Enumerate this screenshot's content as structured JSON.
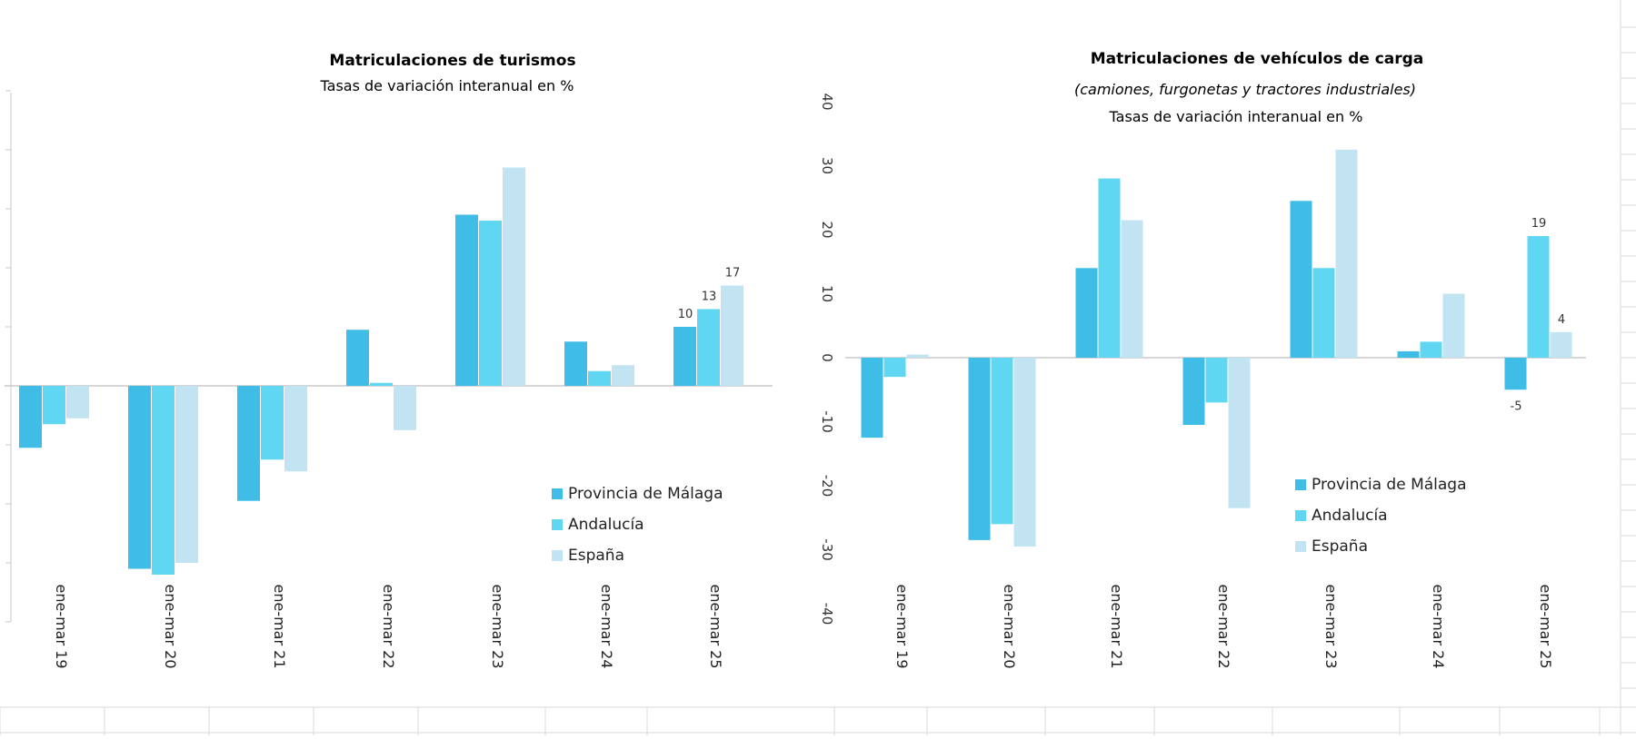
{
  "chart_data": [
    {
      "type": "bar",
      "title": "Matriculaciones de turismos",
      "subtitle": "Tasas de variación interanual en %",
      "categories": [
        "ene-mar 19",
        "ene-mar 20",
        "ene-mar 21",
        "ene-mar 22",
        "ene-mar 23",
        "ene-mar 24",
        "ene-mar 25"
      ],
      "series": [
        {
          "name": "Provincia de Málaga",
          "values": [
            -10.5,
            -31,
            -19.5,
            9.5,
            29,
            7.5,
            10
          ]
        },
        {
          "name": "Andalucía",
          "values": [
            -6.5,
            -32,
            -12.5,
            0.5,
            28,
            2.5,
            13
          ]
        },
        {
          "name": "España",
          "values": [
            -5.5,
            -30,
            -14.5,
            -7.5,
            37,
            3.5,
            17
          ]
        }
      ],
      "data_labels": {
        "Provincia de Málaga": {
          "6": "10"
        },
        "Andalucía": {
          "6": "13"
        },
        "España": {
          "6": "17"
        }
      },
      "ylim": [
        -40,
        50
      ],
      "legend": "bottom-right",
      "grid": false
    },
    {
      "type": "bar",
      "title": "Matriculaciones de vehículos de carga",
      "subtitle": "(camiones, furgonetas y tractores industriales)",
      "subtitle2": "Tasas de variación interanual en %",
      "categories": [
        "ene-mar 19",
        "ene-mar 20",
        "ene-mar 21",
        "ene-mar 22",
        "ene-mar 23",
        "ene-mar 24",
        "ene-mar 25"
      ],
      "series": [
        {
          "name": "Provincia de Málaga",
          "values": [
            -12.5,
            -28.5,
            14,
            -10.5,
            24.5,
            1,
            -5
          ]
        },
        {
          "name": "Andalucía",
          "values": [
            -3,
            -26,
            28,
            -7,
            14,
            2.5,
            19
          ]
        },
        {
          "name": "España",
          "values": [
            0.5,
            -29.5,
            21.5,
            -23.5,
            32.5,
            10,
            4
          ]
        }
      ],
      "data_labels": {
        "Provincia de Málaga": {
          "6": "-5"
        },
        "Andalucía": {
          "6": "19"
        },
        "España": {
          "6": "4"
        }
      },
      "yticks": [
        "40",
        "30",
        "20",
        "10",
        "0",
        "-10",
        "-20",
        "-30",
        "-40"
      ],
      "ylim": [
        -40,
        40
      ],
      "legend": "bottom-right",
      "grid": false
    }
  ],
  "colors": {
    "Provincia de Málaga": "#3fbde6",
    "Andalucía": "#5fd6f2",
    "España": "#c2e3f1",
    "axis": "#c8c8c8"
  }
}
